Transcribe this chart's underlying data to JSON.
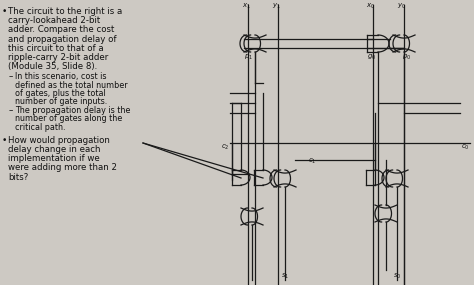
{
  "bg_color": "#cdc9c3",
  "line_color": "#1a1a1a",
  "text_color": "#111111",
  "title_lines": [
    "The circuit to the right is a",
    "carry-lookahead 2-bit",
    "adder. Compare the cost",
    "and propagation delay of",
    "this circuit to that of a",
    "ripple-carry 2-bit adder",
    "(Module 35, Slide 8)."
  ],
  "bullet2_lines": [
    "How would propagation",
    "delay change in each",
    "implementation if we",
    "were adding more than 2",
    "bits?"
  ],
  "sub1_lines": [
    "In this scenario, cost is",
    "defined as the total number",
    "of gates, plus the total",
    "number of gate inputs."
  ],
  "sub2_lines": [
    "The propagation delay is the",
    "number of gates along the",
    "critical path."
  ],
  "font_size": 6.2,
  "sub_font_size": 5.8
}
